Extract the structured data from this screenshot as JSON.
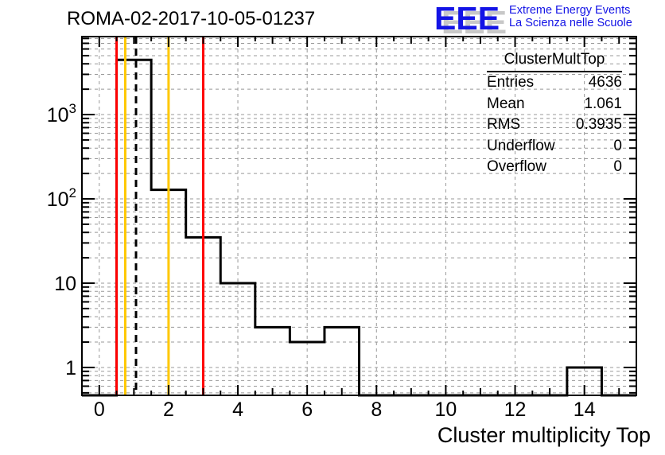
{
  "header": {
    "title": "ROMA-02-2017-10-05-01237"
  },
  "logo": {
    "acronym": "EEE",
    "line1": "Extreme Energy Events",
    "line2": "La Scienza nelle Scuole",
    "color": "#1414e6",
    "shadow_color": "#c8c8c8"
  },
  "stats": {
    "title": "ClusterMultTop",
    "rows": [
      {
        "label": "Entries",
        "value": "4636"
      },
      {
        "label": "Mean",
        "value": "1.061"
      },
      {
        "label": "RMS",
        "value": "0.3935"
      },
      {
        "label": "Underflow",
        "value": "0"
      },
      {
        "label": "Overflow",
        "value": "0"
      }
    ]
  },
  "chart_data": {
    "type": "bar",
    "subtype": "step-histogram-log-y",
    "title": "ROMA-02-2017-10-05-01237",
    "xlabel": "Cluster multiplicity Top",
    "ylabel": "",
    "x_range": [
      -0.5,
      15.5
    ],
    "y_scale": "log",
    "y_range": [
      0.467,
      8414
    ],
    "bin_centers": [
      0,
      1,
      2,
      3,
      4,
      5,
      6,
      7,
      8,
      9,
      10,
      11,
      12,
      13,
      14,
      15
    ],
    "values": [
      0,
      4454,
      128,
      35,
      10,
      3,
      2,
      3,
      0,
      0,
      0,
      0,
      0,
      0,
      1,
      0
    ],
    "x_major_ticks": [
      0,
      2,
      4,
      6,
      8,
      10,
      12,
      14
    ],
    "x_tick_labels": [
      "0",
      "2",
      "4",
      "6",
      "8",
      "10",
      "12",
      "14"
    ],
    "y_major_ticks": [
      {
        "value": 1,
        "base": "1",
        "exp": ""
      },
      {
        "value": 10,
        "base": "10",
        "exp": ""
      },
      {
        "value": 100,
        "base": "10",
        "exp": "2"
      },
      {
        "value": 1000,
        "base": "10",
        "exp": "3"
      }
    ],
    "grid": true,
    "grid_color": "#999999",
    "histogram_color": "#000000",
    "frame_color": "#000000",
    "marker_lines": [
      {
        "name": "lower-alarm-line",
        "x": 0.5,
        "color": "#ff0000",
        "style": "solid"
      },
      {
        "name": "lower-warning-line",
        "x": 0.75,
        "color": "#ffc800",
        "style": "solid"
      },
      {
        "name": "mean-line",
        "x": 1.061,
        "color": "#000000",
        "style": "dashed"
      },
      {
        "name": "upper-warning-line",
        "x": 2.0,
        "color": "#ffc800",
        "style": "solid"
      },
      {
        "name": "upper-alarm-line",
        "x": 3.0,
        "color": "#ff0000",
        "style": "solid"
      }
    ]
  }
}
